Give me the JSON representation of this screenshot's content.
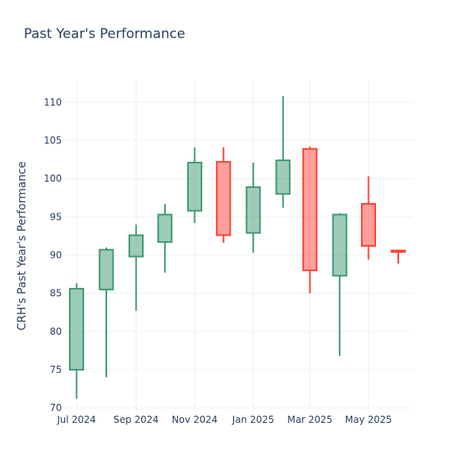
{
  "chart_data": {
    "type": "candlestick",
    "title": "Past Year's Performance",
    "ylabel": "CRH's Past Year's Performance",
    "xlabel": "",
    "ylim": [
      69.5,
      113
    ],
    "y_ticks": [
      70,
      75,
      80,
      85,
      90,
      95,
      100,
      105,
      110
    ],
    "x_ticks": [
      "Jul 2024",
      "Sep 2024",
      "Nov 2024",
      "Jan 2025",
      "Mar 2025",
      "May 2025"
    ],
    "grid": true,
    "increasing_color": "#3d9970",
    "decreasing_color": "#ff4136",
    "candles": [
      {
        "date": "2024-07-01",
        "open": 75.0,
        "high": 86.3,
        "low": 71.2,
        "close": 85.6
      },
      {
        "date": "2024-08-01",
        "open": 85.5,
        "high": 91.0,
        "low": 74.0,
        "close": 90.7
      },
      {
        "date": "2024-09-01",
        "open": 89.8,
        "high": 94.0,
        "low": 82.7,
        "close": 92.6
      },
      {
        "date": "2024-10-01",
        "open": 91.7,
        "high": 96.7,
        "low": 87.7,
        "close": 95.3
      },
      {
        "date": "2024-11-01",
        "open": 95.8,
        "high": 104.1,
        "low": 94.2,
        "close": 102.1
      },
      {
        "date": "2024-12-01",
        "open": 102.2,
        "high": 104.1,
        "low": 91.6,
        "close": 92.6
      },
      {
        "date": "2025-01-01",
        "open": 92.9,
        "high": 102.1,
        "low": 90.3,
        "close": 98.9
      },
      {
        "date": "2025-02-01",
        "open": 98.0,
        "high": 110.8,
        "low": 96.2,
        "close": 102.4
      },
      {
        "date": "2025-03-01",
        "open": 103.9,
        "high": 104.2,
        "low": 85.0,
        "close": 88.0
      },
      {
        "date": "2025-04-01",
        "open": 87.3,
        "high": 95.5,
        "low": 76.8,
        "close": 95.3
      },
      {
        "date": "2025-05-01",
        "open": 96.7,
        "high": 100.3,
        "low": 89.4,
        "close": 91.2
      },
      {
        "date": "2025-06-01",
        "open": 90.6,
        "high": 90.6,
        "low": 88.9,
        "close": 90.4
      }
    ]
  }
}
